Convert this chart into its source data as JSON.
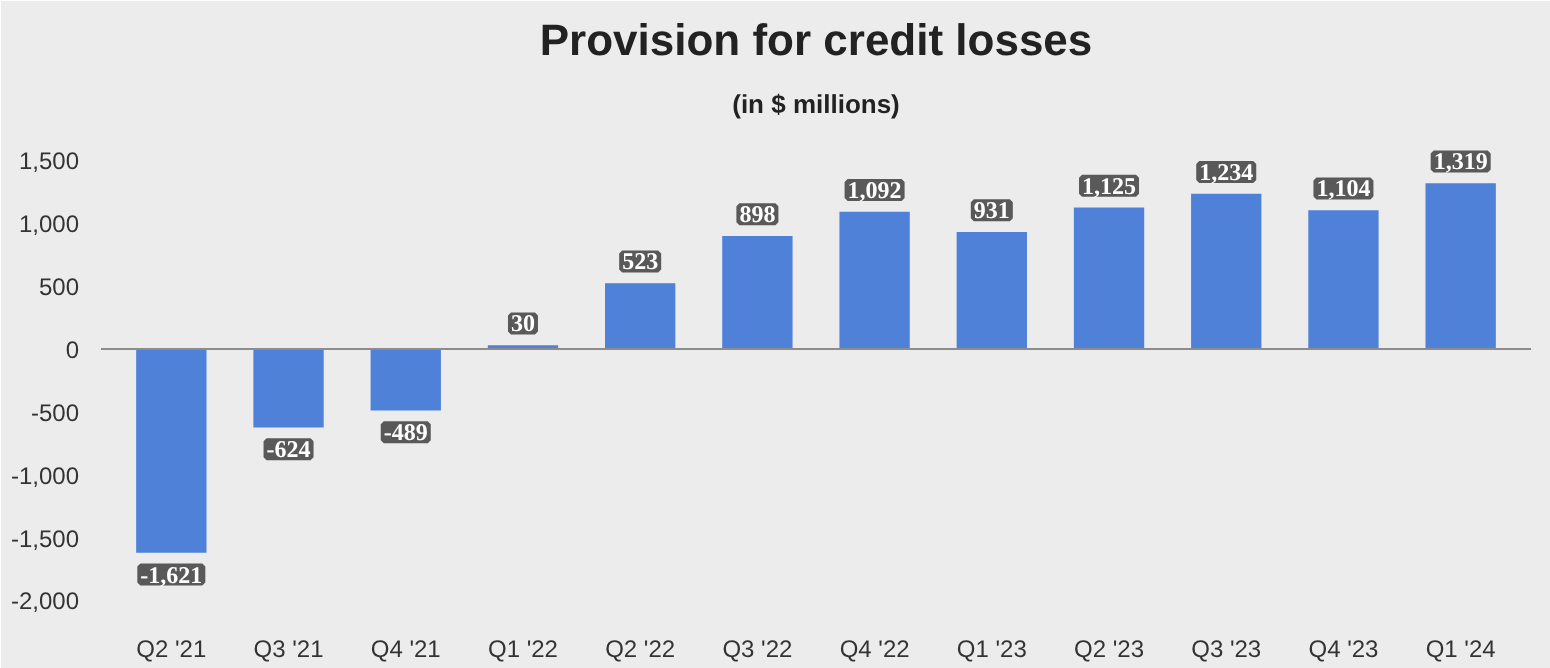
{
  "chart_data": {
    "type": "bar",
    "title": "Provision for credit losses",
    "subtitle": "(in $ millions)",
    "categories": [
      "Q2 '21",
      "Q3 '21",
      "Q4 '21",
      "Q1 '22",
      "Q2 '22",
      "Q3 '22",
      "Q4 '22",
      "Q1 '23",
      "Q2 '23",
      "Q3 '23",
      "Q4 '23",
      "Q1 '24"
    ],
    "values": [
      -1621,
      -624,
      -489,
      30,
      523,
      898,
      1092,
      931,
      1125,
      1234,
      1104,
      1319
    ],
    "value_labels": [
      "-1,621",
      "-624",
      "-489",
      "30",
      "523",
      "898",
      "1,092",
      "931",
      "1,125",
      "1,234",
      "1,104",
      "1,319"
    ],
    "color": "#4f81d9",
    "ylim": [
      -2100,
      1750
    ],
    "yticks": [
      {
        "value": -2000,
        "label": "-2,000"
      },
      {
        "value": -1500,
        "label": "-1,500"
      },
      {
        "value": -1000,
        "label": "-1,000"
      },
      {
        "value": -500,
        "label": "-500"
      },
      0,
      {
        "value": 500,
        "label": "500"
      },
      {
        "value": 1000,
        "label": "1,000"
      },
      {
        "value": 1500,
        "label": "1,500"
      }
    ],
    "ref_lines": [
      {
        "axis": "y",
        "value": 0,
        "color": "#8c8c8c"
      }
    ],
    "grid": false
  }
}
